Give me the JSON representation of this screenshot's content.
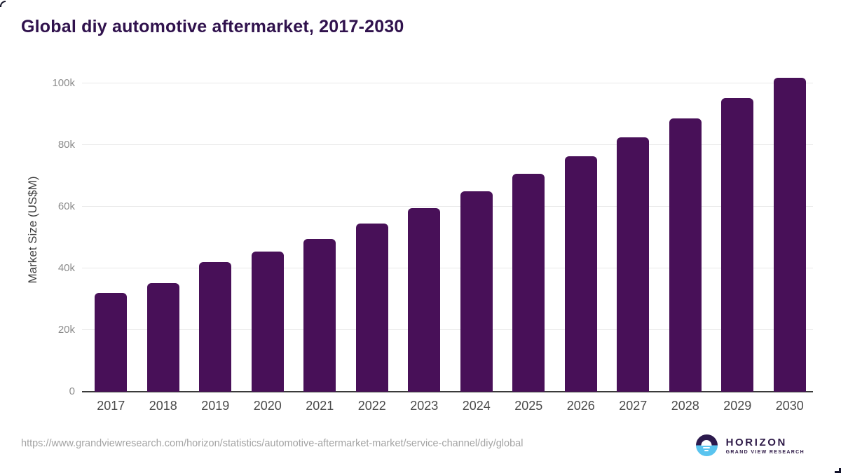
{
  "page": {
    "background": "#ffffff"
  },
  "header": {
    "title": "Global diy automotive aftermarket, 2017-2030",
    "title_color": "#30124d"
  },
  "chart_data": {
    "type": "bar",
    "title": "Global diy automotive aftermarket, 2017-2030",
    "categories": [
      "2017",
      "2018",
      "2019",
      "2020",
      "2021",
      "2022",
      "2023",
      "2024",
      "2025",
      "2026",
      "2027",
      "2028",
      "2029",
      "2030"
    ],
    "values": [
      31900,
      35300,
      41900,
      45300,
      49500,
      54400,
      59400,
      64900,
      70500,
      76300,
      82500,
      88500,
      95100,
      101600
    ],
    "unit": "US$M",
    "xlabel": "",
    "ylabel": "Market Size (US$M)",
    "ylim": [
      0,
      105000
    ],
    "y_ticks": [
      {
        "value": 0,
        "label": "0"
      },
      {
        "value": 20000,
        "label": "20k"
      },
      {
        "value": 40000,
        "label": "40k"
      },
      {
        "value": 60000,
        "label": "60k"
      },
      {
        "value": 80000,
        "label": "80k"
      },
      {
        "value": 100000,
        "label": "100k"
      }
    ],
    "grid": "horizontal-only",
    "legend": "none",
    "bar_color": "#481058",
    "gridline_color": "#e8e8e8",
    "axis_line_color": "#3a3a3a",
    "x_tick_color": "#4a4a4a",
    "y_tick_color": "#8c8c8c"
  },
  "footer": {
    "source_url": "https://www.grandviewresearch.com/horizon/statistics/automotive-aftermarket-market/service-channel/diy/global",
    "logo": {
      "name": "HORIZON",
      "subtitle": "GRAND VIEW RESEARCH",
      "mark_icon": "sun-over-water-icon",
      "dark_color": "#2c1a4d",
      "blue_color": "#5ac4ef"
    }
  }
}
